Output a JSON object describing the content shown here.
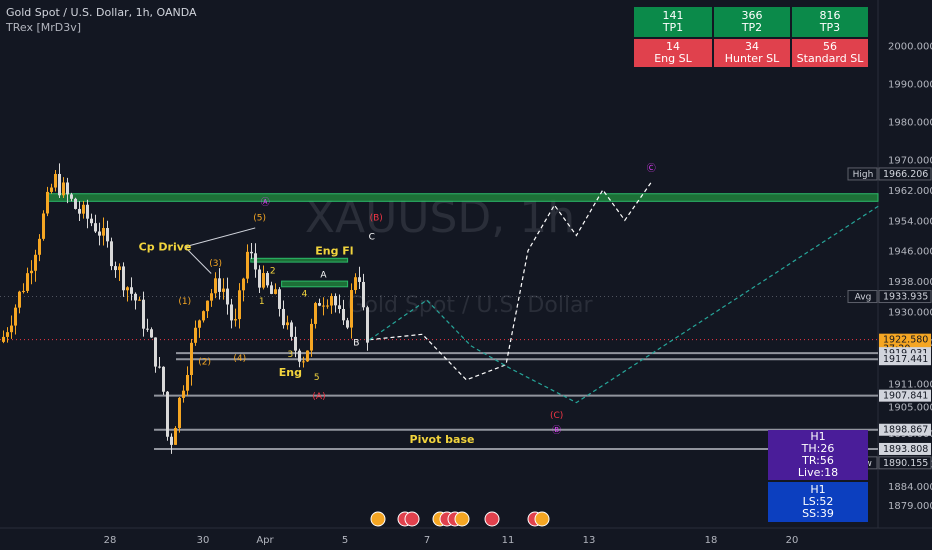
{
  "header": {
    "symbol_title": "Gold Spot / U.S. Dollar, 1h, OANDA",
    "indicator": "TRex [MrD3v]"
  },
  "watermark": {
    "symbol": "XAUUSD, 1h",
    "name": "Gold Spot / U.S. Dollar"
  },
  "tp_table": {
    "top": [
      {
        "value": "141",
        "label": "TP1"
      },
      {
        "value": "366",
        "label": "TP2"
      },
      {
        "value": "816",
        "label": "TP3"
      }
    ],
    "bottom": [
      {
        "value": "14",
        "label": "Eng SL"
      },
      {
        "value": "34",
        "label": "Hunter SL"
      },
      {
        "value": "56",
        "label": "Standard SL"
      }
    ]
  },
  "h1_box_purple": {
    "tf": "H1",
    "th": "TH:26",
    "tr": "TR:56",
    "live": "Live:18"
  },
  "h1_box_blue": {
    "tf": "H1",
    "ls": "LS:52",
    "ss": "SS:39"
  },
  "colors": {
    "background": "#131722",
    "up_candle": "#f5a623",
    "down_candle": "#d9d9d9",
    "tp_green": "#0b8a4a",
    "sl_red": "#e0414d",
    "zone_green": "#1f7a3a",
    "projection_white": "#ffffff",
    "projection_teal": "#26a69a",
    "wave_orange": "#f5a623",
    "wave_pink": "#e040fb",
    "wave_red": "#f23645",
    "label_yellow": "#f2d43d",
    "purple_box": "#4a1d99",
    "blue_box": "#0c3fbf"
  },
  "chart_data": {
    "type": "candlestick",
    "title": "Gold Spot / U.S. Dollar, 1h, OANDA",
    "x_ticks": [
      "28",
      "30",
      "Apr",
      "5",
      "7",
      "11",
      "13",
      "18",
      "20"
    ],
    "y_ticks": [
      2000,
      1990,
      1980,
      1970,
      1962,
      1954,
      1946,
      1938,
      1930,
      1922,
      1911,
      1905,
      1898,
      1890,
      1884,
      1879
    ],
    "y_tick_labels": [
      "2000.000",
      "1990.000",
      "1980.000",
      "1970.000",
      "1962.000",
      "1954.000",
      "1946.000",
      "1938.000",
      "1930.000",
      "1922.000",
      "1911.000",
      "1905.000",
      "1898.000",
      "1890.000",
      "1884.000",
      "1879.000"
    ],
    "ylim": [
      1873,
      2012
    ],
    "grid": false,
    "price_tags": [
      {
        "text": "High",
        "value": "1966.206",
        "price": 1966.206,
        "style": "outline"
      },
      {
        "text": "Avg",
        "value": "1933.935",
        "price": 1933.935,
        "style": "outline"
      },
      {
        "text": "",
        "value": "1922.580",
        "sub": "37:20",
        "price": 1922.58,
        "style": "orange"
      },
      {
        "text": "",
        "value": "1919.031",
        "price": 1919.031,
        "style": "white"
      },
      {
        "text": "",
        "value": "1917.441",
        "price": 1917.441,
        "style": "white"
      },
      {
        "text": "",
        "value": "1907.841",
        "price": 1907.841,
        "style": "white"
      },
      {
        "text": "",
        "value": "1898.867",
        "price": 1898.867,
        "style": "white"
      },
      {
        "text": "",
        "value": "1893.808",
        "price": 1893.808,
        "style": "white"
      },
      {
        "text": "Low",
        "value": "1890.155",
        "price": 1890.155,
        "style": "outline"
      }
    ],
    "levels": [
      {
        "price": 1919.031,
        "from": 0.4,
        "label": ""
      },
      {
        "price": 1917.441,
        "from": 0.4,
        "label": ""
      },
      {
        "price": 1907.841,
        "from": 0.35,
        "label": ""
      },
      {
        "price": 1898.867,
        "from": 0.35,
        "label": ""
      },
      {
        "price": 1893.808,
        "from": 0.35,
        "label": "Pivot base"
      }
    ],
    "zones": [
      {
        "x0": 0.1,
        "x1": 1.0,
        "p0": 1961.0,
        "p1": 1959.0
      },
      {
        "x0": 0.57,
        "x1": 0.79,
        "p0": 1944.0,
        "p1": 1943.0
      },
      {
        "x0": 0.64,
        "x1": 0.79,
        "p0": 1938.0,
        "p1": 1936.5
      }
    ],
    "segments": [
      {
        "t0": 0.0,
        "p0": 1922,
        "t1": 0.06,
        "p1": 1940
      },
      {
        "t1": 0.12,
        "p1": 1965
      },
      {
        "t1": 0.17,
        "p1": 1957
      },
      {
        "t1": 0.22,
        "p1": 1952
      },
      {
        "t1": 0.27,
        "p1": 1940
      },
      {
        "t1": 0.31,
        "p1": 1932
      },
      {
        "t1": 0.35,
        "p1": 1918
      },
      {
        "t1": 0.37,
        "p1": 1908
      },
      {
        "t1": 0.38,
        "p1": 1893
      },
      {
        "t1": 0.42,
        "p1": 1915
      },
      {
        "t1": 0.46,
        "p1": 1933
      },
      {
        "t1": 0.5,
        "p1": 1938
      },
      {
        "t1": 0.53,
        "p1": 1925
      },
      {
        "t1": 0.56,
        "p1": 1946
      },
      {
        "t1": 0.59,
        "p1": 1938
      },
      {
        "t1": 0.63,
        "p1": 1932
      },
      {
        "t1": 0.66,
        "p1": 1921
      },
      {
        "t1": 0.69,
        "p1": 1918
      },
      {
        "t1": 0.72,
        "p1": 1933
      },
      {
        "t1": 0.75,
        "p1": 1935
      },
      {
        "t1": 0.78,
        "p1": 1924
      },
      {
        "t1": 0.81,
        "p1": 1944
      },
      {
        "t1": 0.83,
        "p1": 1921
      },
      {
        "t1": 0.84,
        "p1": 1922.58
      }
    ],
    "projection_white": [
      {
        "x": 0.84,
        "p": 1922.58
      },
      {
        "x": 0.96,
        "p": 1924
      },
      {
        "x": 1.06,
        "p": 1912
      },
      {
        "x": 1.15,
        "p": 1916
      },
      {
        "x": 1.2,
        "p": 1946
      },
      {
        "x": 1.26,
        "p": 1958
      },
      {
        "x": 1.31,
        "p": 1950
      },
      {
        "x": 1.37,
        "p": 1962
      },
      {
        "x": 1.42,
        "p": 1954
      },
      {
        "x": 1.48,
        "p": 1964
      }
    ],
    "projection_teal": [
      {
        "x": 0.84,
        "p": 1922.58
      },
      {
        "x": 0.97,
        "p": 1933
      },
      {
        "x": 1.07,
        "p": 1921
      },
      {
        "x": 1.16,
        "p": 1915
      },
      {
        "x": 1.31,
        "p": 1906
      },
      {
        "x": 2.0,
        "p": 1958
      }
    ],
    "wave_labels": [
      {
        "text": "(1)",
        "x": 0.42,
        "p": 1932,
        "color": "#f5a623"
      },
      {
        "text": "(2)",
        "x": 0.465,
        "p": 1916,
        "color": "#f5a623"
      },
      {
        "text": "(3)",
        "x": 0.49,
        "p": 1942,
        "color": "#f5a623"
      },
      {
        "text": "(4)",
        "x": 0.545,
        "p": 1917,
        "color": "#f5a623"
      },
      {
        "text": "(5)",
        "x": 0.59,
        "p": 1954,
        "color": "#f5a623"
      },
      {
        "text": "Ⓐ",
        "x": 0.603,
        "p": 1958,
        "color": "#e040fb"
      },
      {
        "text": "1",
        "x": 0.595,
        "p": 1932,
        "color": "#f2d43d"
      },
      {
        "text": "2",
        "x": 0.62,
        "p": 1940,
        "color": "#f2d43d"
      },
      {
        "text": "3",
        "x": 0.66,
        "p": 1918,
        "color": "#f2d43d"
      },
      {
        "text": "4",
        "x": 0.692,
        "p": 1934,
        "color": "#f2d43d"
      },
      {
        "text": "5",
        "x": 0.72,
        "p": 1912,
        "color": "#f2d43d"
      },
      {
        "text": "(A)",
        "x": 0.725,
        "p": 1907,
        "color": "#f23645"
      },
      {
        "text": "A",
        "x": 0.735,
        "p": 1939,
        "color": "#ffffff"
      },
      {
        "text": "B",
        "x": 0.81,
        "p": 1921,
        "color": "#ffffff"
      },
      {
        "text": "C",
        "x": 0.845,
        "p": 1949,
        "color": "#ffffff"
      },
      {
        "text": "(B)",
        "x": 0.855,
        "p": 1954,
        "color": "#f23645"
      },
      {
        "text": "Ⓒ",
        "x": 1.48,
        "p": 1967,
        "color": "#e040fb"
      },
      {
        "text": "(C)",
        "x": 1.265,
        "p": 1902,
        "color": "#f23645"
      },
      {
        "text": "Ⓑ",
        "x": 1.265,
        "p": 1898,
        "color": "#e040fb"
      }
    ],
    "text_labels": [
      {
        "text": "Cp Drive",
        "x": 0.375,
        "p": 1946,
        "color": "#f2d43d"
      },
      {
        "text": "Eng Fl",
        "x": 0.76,
        "p": 1945,
        "color": "#f2d43d"
      },
      {
        "text": "Eng",
        "x": 0.66,
        "p": 1913,
        "color": "#f2d43d"
      }
    ],
    "cp_drive_lines": [
      {
        "x0": 0.42,
        "p0": 1947,
        "x1": 0.48,
        "p1": 1940
      },
      {
        "x0": 0.42,
        "p0": 1947,
        "x1": 0.58,
        "p1": 1952
      }
    ]
  }
}
